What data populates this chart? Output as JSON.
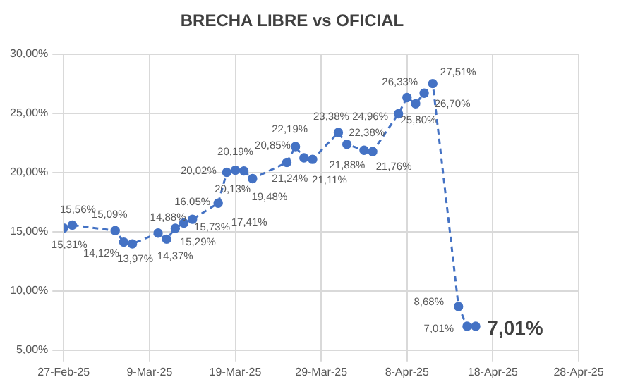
{
  "chart_data": {
    "type": "line",
    "title": "BRECHA LIBRE vs OFICIAL",
    "x": [
      "--02-27",
      "--02-28",
      "--03-05",
      "--03-06",
      "--03-07",
      "--03-10",
      "--03-11",
      "--03-12",
      "--03-13",
      "--03-14",
      "--03-17",
      "--03-18",
      "--03-19",
      "--03-20",
      "--03-21",
      "--03-25",
      "--03-26",
      "--03-27",
      "--03-28",
      "--03-31",
      "--04-01",
      "--04-03",
      "--04-04",
      "--04-07",
      "--04-08",
      "--04-09",
      "--04-10",
      "--04-11",
      "--04-14",
      "--04-15",
      "--04-16"
    ],
    "series": [
      {
        "color": "#4472c4",
        "values": [
          15.31,
          15.56,
          15.09,
          14.12,
          13.97,
          14.88,
          14.37,
          15.29,
          15.73,
          16.05,
          17.41,
          20.02,
          20.19,
          20.13,
          19.48,
          20.85,
          22.19,
          21.24,
          21.11,
          23.38,
          22.38,
          21.88,
          21.76,
          24.96,
          26.33,
          25.8,
          26.7,
          27.51,
          8.68,
          7.01,
          7.01
        ],
        "value_labels": [
          "15,31%",
          "15,56%",
          "15,09%",
          "14,12%",
          "13,97%",
          "14,88%",
          "14,37%",
          "15,29%",
          "15,73%",
          "16,05%",
          "17,41%",
          "20,02%",
          "20,19%",
          "20,13%",
          "19,48%",
          "20,85%",
          "22,19%",
          "21,24%",
          "21,11%",
          "23,38%",
          "22,38%",
          "21,88%",
          "21,76%",
          "24,96%",
          "26,33%",
          "25,80%",
          "26,70%",
          "27,51%",
          "8,68%",
          "7,01%",
          "7,01%"
        ]
      }
    ],
    "xlim": [
      "--02-27",
      "--04-28"
    ],
    "xticks": [
      {
        "value": "--02-27",
        "label": "27-Feb-25"
      },
      {
        "value": "--03-09",
        "label": "9-Mar-25"
      },
      {
        "value": "--03-19",
        "label": "19-Mar-25"
      },
      {
        "value": "--03-29",
        "label": "29-Mar-25"
      },
      {
        "value": "--04-08",
        "label": "8-Apr-25"
      },
      {
        "value": "--04-18",
        "label": "18-Apr-25"
      },
      {
        "value": "--04-28",
        "label": "28-Apr-25"
      }
    ],
    "ylim": [
      5,
      30
    ],
    "yticks": [
      {
        "value": 5,
        "label": "5,00%"
      },
      {
        "value": 10,
        "label": "10,00%"
      },
      {
        "value": 15,
        "label": "15,00%"
      },
      {
        "value": 20,
        "label": "20,00%"
      },
      {
        "value": 25,
        "label": "25,00%"
      },
      {
        "value": 30,
        "label": "30,00%"
      }
    ],
    "grid": true,
    "legend": false,
    "marker": "circle",
    "line_style": "dashed"
  }
}
